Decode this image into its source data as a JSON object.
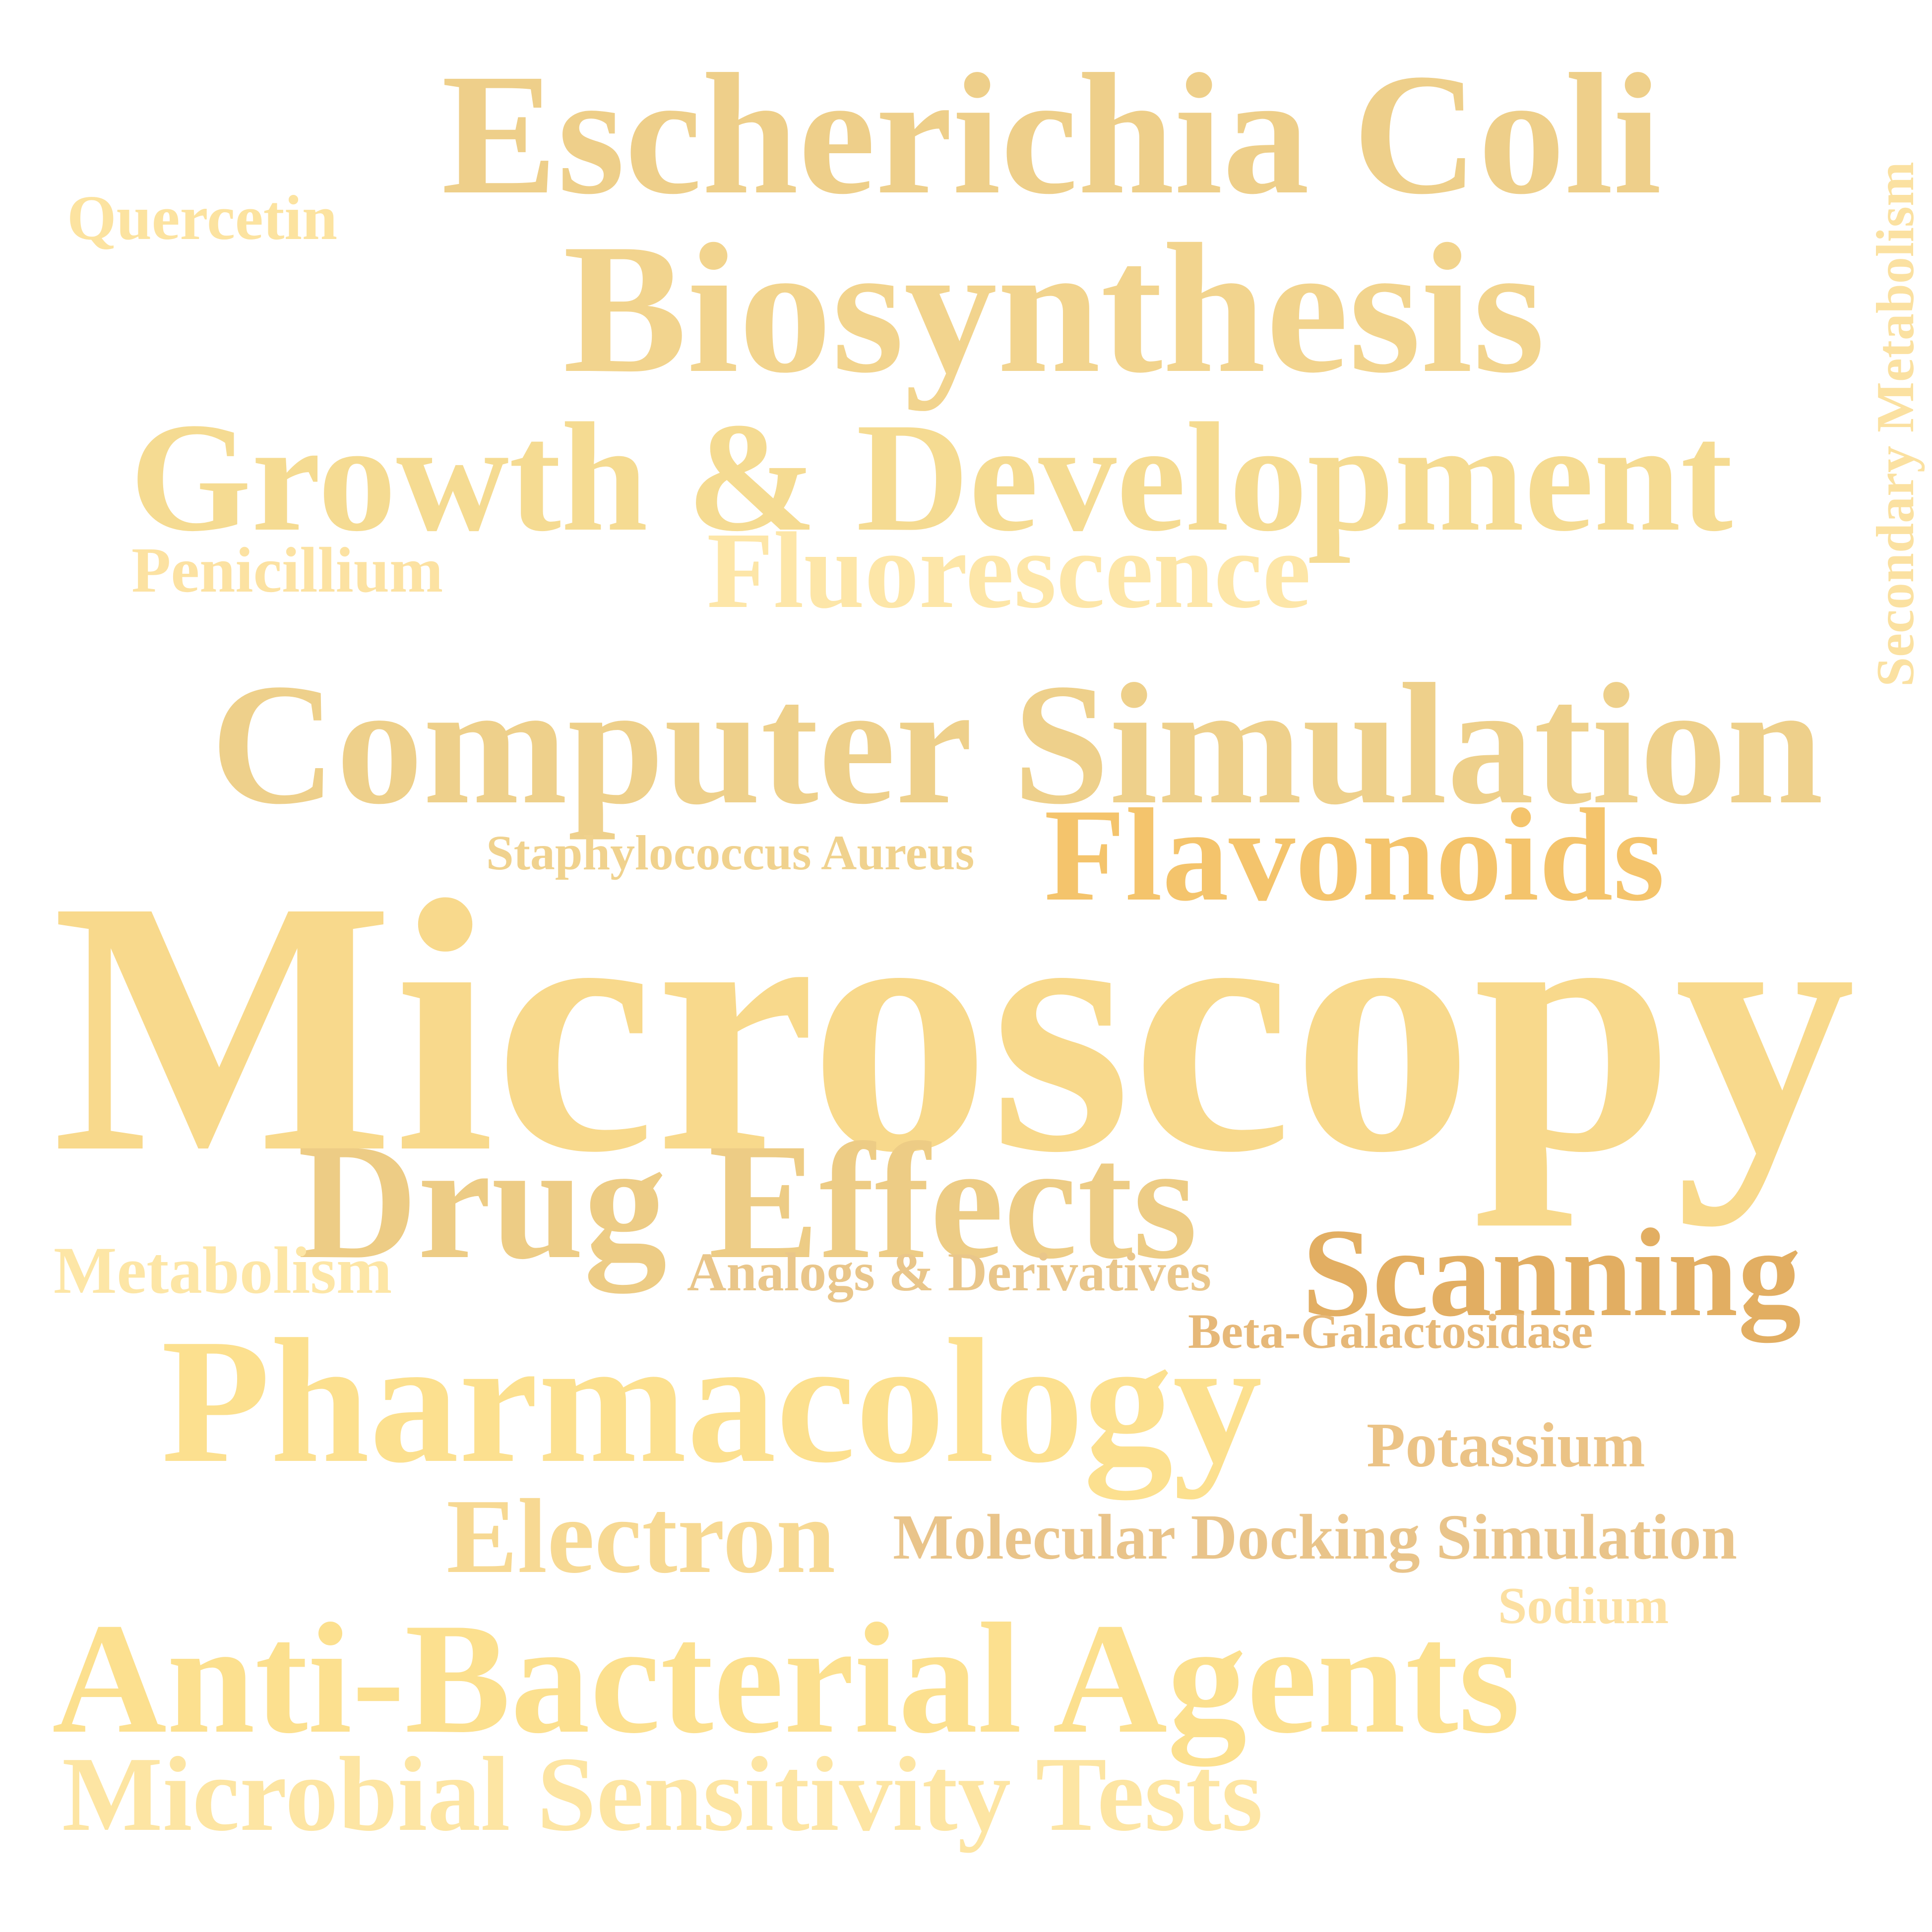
{
  "word_cloud": {
    "words": [
      {
        "key": "escherichia_coli",
        "text": "Escherichia Coli",
        "color": "#EECF8A"
      },
      {
        "key": "quercetin",
        "text": "Quercetin",
        "color": "#FCE3A0"
      },
      {
        "key": "biosynthesis",
        "text": "Biosynthesis",
        "color": "#F2D48E"
      },
      {
        "key": "growth_development",
        "text": "Growth & Development",
        "color": "#F5DB92"
      },
      {
        "key": "penicillium",
        "text": "Penicillium",
        "color": "#FCE2A2"
      },
      {
        "key": "fluorescence",
        "text": "Fluorescence",
        "color": "#FDE6A8"
      },
      {
        "key": "secondary_metabolism",
        "text": "Secondary Metabolism",
        "color": "#FBE1A1"
      },
      {
        "key": "computer_simulation",
        "text": "Computer Simulation",
        "color": "#EED08B"
      },
      {
        "key": "flavonoids",
        "text": "Flavonoids",
        "color": "#F4C46C"
      },
      {
        "key": "staphylococcus_aureus",
        "text": "Staphylococcus Aureus",
        "color": "#F0D28E"
      },
      {
        "key": "microscopy",
        "text": "Microscopy",
        "color": "#F8D98C"
      },
      {
        "key": "drug_effects",
        "text": "Drug Effects",
        "color": "#EDCC85"
      },
      {
        "key": "metabolism",
        "text": "Metabolism",
        "color": "#FDE6A6"
      },
      {
        "key": "analogs_derivatives",
        "text": "Analogs & Derivatives",
        "color": "#E9C68A"
      },
      {
        "key": "scanning",
        "text": "Scanning",
        "color": "#E2AE62"
      },
      {
        "key": "beta_galactosidase",
        "text": "Beta-Galactosidase",
        "color": "#E6B878"
      },
      {
        "key": "pharmacology",
        "text": "Pharmacology",
        "color": "#FCE08F"
      },
      {
        "key": "potassium",
        "text": "Potassium",
        "color": "#EBC386"
      },
      {
        "key": "electron",
        "text": "Electron",
        "color": "#F7D993"
      },
      {
        "key": "molecular_docking_simulation",
        "text": "Molecular Docking Simulation",
        "color": "#E9C48A"
      },
      {
        "key": "sodium",
        "text": "Sodium",
        "color": "#FCE0A2"
      },
      {
        "key": "anti_bacterial_agents",
        "text": "Anti-Bacterial Agents",
        "color": "#FCE08F"
      },
      {
        "key": "microbial_sensitivity_tests",
        "text": "Microbial Sensitivity Tests",
        "color": "#FDE5A3"
      }
    ]
  }
}
